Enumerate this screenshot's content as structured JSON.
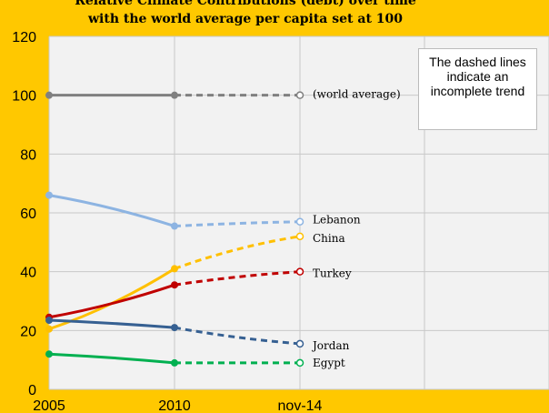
{
  "chart_data": {
    "type": "line",
    "title_lines": [
      "Relative Climate Contributions (debt) over time",
      "with the world average per capita set at 100"
    ],
    "categories": [
      "2005",
      "2010",
      "nov-14"
    ],
    "ylim": [
      0,
      120
    ],
    "yticks": [
      "0",
      "20",
      "40",
      "60",
      "80",
      "100",
      "120"
    ],
    "grid": true,
    "note": "The dashed lines indicate an incomplete trend",
    "series": [
      {
        "name": "(world average)",
        "values": [
          100,
          100,
          100
        ],
        "color": "#808080"
      },
      {
        "name": "Lebanon",
        "values": [
          66,
          55.5,
          57
        ],
        "color": "#8DB4E2"
      },
      {
        "name": "China",
        "values": [
          20.5,
          41,
          52
        ],
        "color": "#FFC000"
      },
      {
        "name": "Turkey",
        "values": [
          24.5,
          35.5,
          40
        ],
        "color": "#C00000"
      },
      {
        "name": "Jordan",
        "values": [
          23.5,
          21,
          15.5
        ],
        "color": "#366092"
      },
      {
        "name": "Egypt",
        "values": [
          12,
          9,
          9
        ],
        "color": "#00B050"
      }
    ]
  }
}
